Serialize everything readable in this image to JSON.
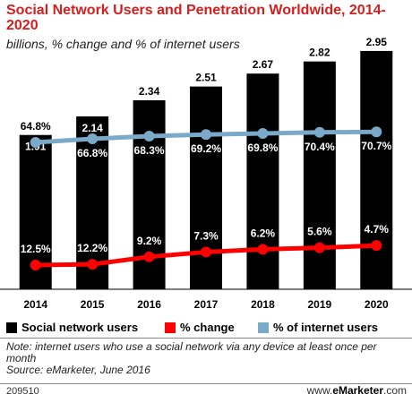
{
  "header": {
    "title": "Social Network Users and Penetration Worldwide, 2014-2020",
    "subtitle": "billions, % change and % of internet users"
  },
  "chart_data": {
    "type": "bar",
    "categories": [
      "2014",
      "2015",
      "2016",
      "2017",
      "2018",
      "2019",
      "2020"
    ],
    "series": [
      {
        "name": "Social network users",
        "kind": "bar",
        "color": "#000000",
        "values": [
          1.91,
          2.14,
          2.34,
          2.51,
          2.67,
          2.82,
          2.95
        ],
        "labels": [
          "1.91",
          "2.14",
          "2.34",
          "2.51",
          "2.67",
          "2.82",
          "2.95"
        ]
      },
      {
        "name": "% change",
        "kind": "line",
        "color": "#ff0000",
        "values": [
          12.5,
          12.2,
          9.2,
          7.3,
          6.2,
          5.6,
          4.7
        ],
        "labels": [
          "12.5%",
          "12.2%",
          "9.2%",
          "7.3%",
          "6.2%",
          "5.6%",
          "4.7%"
        ]
      },
      {
        "name": "% of internet users",
        "kind": "line",
        "color": "#7aa9c9",
        "values": [
          64.8,
          66.8,
          68.3,
          69.2,
          69.8,
          70.4,
          70.7
        ],
        "labels": [
          "64.8%",
          "66.8%",
          "68.3%",
          "69.2%",
          "69.8%",
          "70.4%",
          "70.7%"
        ]
      }
    ],
    "ylim": [
      0,
      3.2
    ]
  },
  "legend": {
    "items": [
      {
        "label": "Social network users",
        "color": "#000000"
      },
      {
        "label": "% change",
        "color": "#ff0000"
      },
      {
        "label": "% of internet users",
        "color": "#7aa9c9"
      }
    ]
  },
  "footer": {
    "note": "Note: internet users who use a social network via any device at least once per month",
    "source": "Source: eMarketer, June 2016",
    "chart_id": "209510",
    "brand_prefix": "www.",
    "brand_name": "eMarketer",
    "brand_suffix": ".com"
  }
}
